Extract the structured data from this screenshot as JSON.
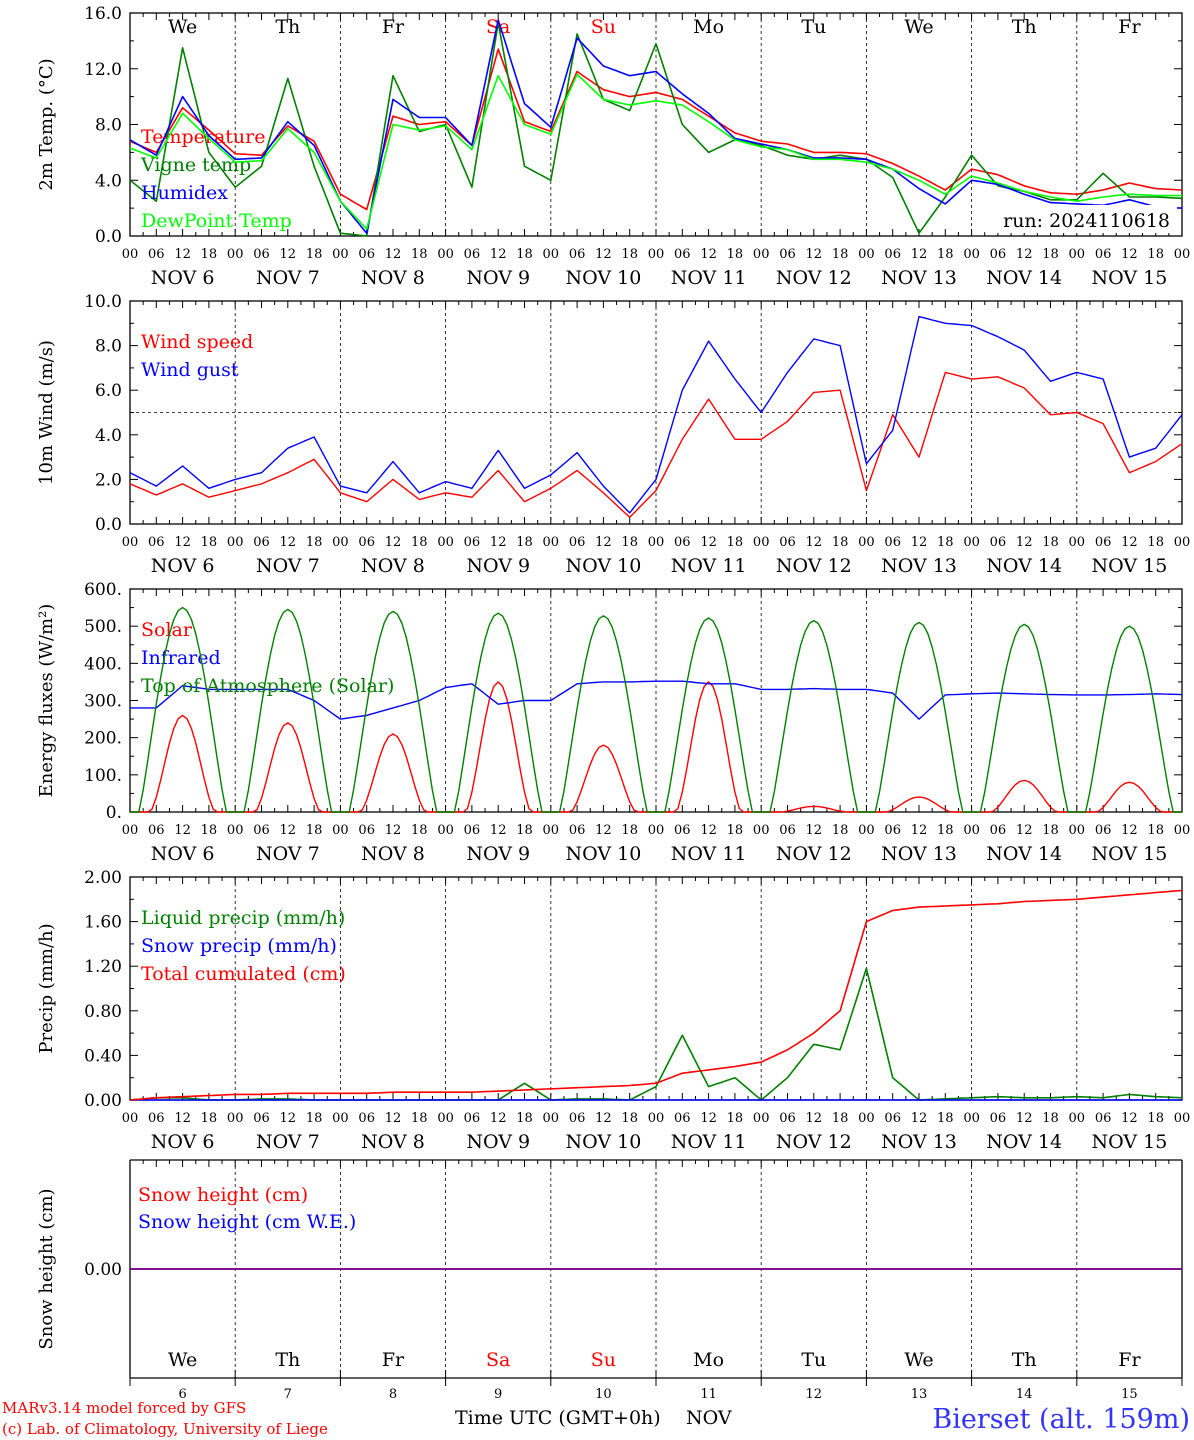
{
  "days": {
    "weekday_labels": [
      "We",
      "Th",
      "Fr",
      "Sa",
      "Su",
      "Mo",
      "Tu",
      "We",
      "Th",
      "Fr"
    ],
    "weekday_colors": [
      "#000000",
      "#000000",
      "#000000",
      "#ff0000",
      "#ff0000",
      "#000000",
      "#000000",
      "#000000",
      "#000000",
      "#000000"
    ],
    "date_labels": [
      "NOV  6",
      "NOV  7",
      "NOV  8",
      "NOV  9",
      "NOV 10",
      "NOV 11",
      "NOV 12",
      "NOV 13",
      "NOV 14",
      "NOV 15"
    ],
    "day_numbers": [
      "6",
      "7",
      "8",
      "9",
      "10",
      "11",
      "12",
      "13",
      "14",
      "15"
    ],
    "hour_ticks": [
      "00",
      "06",
      "12",
      "18"
    ],
    "final_hour": "00"
  },
  "footer": {
    "credit_line1": "MARv3.14 model forced by GFS",
    "credit_line2": "(c) Lab. of Climatology, University of Liege",
    "time_axis_label": "Time UTC (GMT+0h)",
    "month_label": "NOV",
    "station": "Bierset (alt. 159m)"
  },
  "colors": {
    "red": "#ff0000",
    "blue": "#0000ff",
    "green": "#008000",
    "lightgreen": "#00ff00",
    "purple": "#800080",
    "station": "#3333ff"
  },
  "chart_data": [
    {
      "type": "line",
      "ylabel": "2m Temp. (°C)",
      "ylim": [
        0,
        16
      ],
      "yticks": [
        "0.0",
        "4.0",
        "8.0",
        "12.0",
        "16.0"
      ],
      "annotation": "run: 2024110618",
      "x_unit": "hours since NOV 6 00 UTC",
      "show_weekdays": true,
      "series": [
        {
          "name": "Temperature",
          "color": "red",
          "x": [
            0,
            6,
            12,
            18,
            24,
            30,
            36,
            42,
            48,
            54,
            60,
            66,
            72,
            78,
            84,
            90,
            96,
            102,
            108,
            114,
            120,
            126,
            132,
            138,
            144,
            150,
            156,
            162,
            168,
            174,
            180,
            186,
            192,
            198,
            204,
            210,
            216,
            222,
            228,
            234,
            240
          ],
          "y": [
            6.8,
            6.0,
            9.2,
            7.6,
            5.9,
            5.8,
            7.9,
            6.8,
            3.0,
            1.9,
            8.6,
            8.0,
            8.2,
            6.5,
            13.4,
            8.2,
            7.5,
            11.8,
            10.5,
            10.0,
            10.3,
            9.8,
            8.6,
            7.4,
            6.8,
            6.6,
            6.0,
            6.0,
            5.9,
            5.2,
            4.3,
            3.3,
            4.8,
            4.4,
            3.6,
            3.1,
            3.0,
            3.3,
            3.8,
            3.4,
            3.3
          ]
        },
        {
          "name": "Vigne temp",
          "color": "green",
          "x": [
            0,
            6,
            12,
            18,
            24,
            30,
            36,
            42,
            48,
            54,
            60,
            66,
            72,
            78,
            84,
            90,
            96,
            102,
            108,
            114,
            120,
            126,
            132,
            138,
            144,
            150,
            156,
            162,
            168,
            174,
            180,
            186,
            192,
            198,
            204,
            210,
            216,
            222,
            228,
            234,
            240
          ],
          "y": [
            4.0,
            2.5,
            13.5,
            6.0,
            3.5,
            5.0,
            11.3,
            5.0,
            0.2,
            0.0,
            11.5,
            7.5,
            8.0,
            3.5,
            15.3,
            5.0,
            4.0,
            14.5,
            9.8,
            9.0,
            13.8,
            8.0,
            6.0,
            6.9,
            6.5,
            5.8,
            5.5,
            5.8,
            5.5,
            4.2,
            0.2,
            2.8,
            5.8,
            3.6,
            3.2,
            2.6,
            2.6,
            4.5,
            2.8,
            2.8,
            2.7
          ]
        },
        {
          "name": "Humidex",
          "color": "blue",
          "x": [
            0,
            6,
            12,
            18,
            24,
            30,
            36,
            42,
            48,
            54,
            60,
            66,
            72,
            78,
            84,
            90,
            96,
            102,
            108,
            114,
            120,
            126,
            132,
            138,
            144,
            150,
            156,
            162,
            168,
            174,
            180,
            186,
            192,
            198,
            204,
            210,
            216,
            222,
            228,
            234,
            240
          ],
          "y": [
            6.9,
            5.8,
            10.0,
            7.2,
            5.5,
            5.6,
            8.2,
            6.5,
            2.5,
            0.2,
            9.8,
            8.5,
            8.5,
            6.5,
            15.5,
            9.5,
            7.8,
            14.2,
            12.2,
            11.5,
            11.8,
            10.2,
            8.8,
            7.0,
            6.6,
            6.2,
            5.6,
            5.6,
            5.5,
            4.8,
            3.4,
            2.3,
            4.0,
            3.7,
            3.0,
            2.4,
            2.3,
            2.2,
            2.6,
            2.1,
            2.0
          ]
        },
        {
          "name": "DewPoint Temp",
          "color": "lightgreen",
          "x": [
            0,
            6,
            12,
            18,
            24,
            30,
            36,
            42,
            48,
            54,
            60,
            66,
            72,
            78,
            84,
            90,
            96,
            102,
            108,
            114,
            120,
            126,
            132,
            138,
            144,
            150,
            156,
            162,
            168,
            174,
            180,
            186,
            192,
            198,
            204,
            210,
            216,
            222,
            228,
            234,
            240
          ],
          "y": [
            6.3,
            5.6,
            8.8,
            7.0,
            5.3,
            5.4,
            7.7,
            6.0,
            2.5,
            0.5,
            8.0,
            7.6,
            7.9,
            6.2,
            11.5,
            8.0,
            7.3,
            11.6,
            9.8,
            9.4,
            9.7,
            9.4,
            8.2,
            6.9,
            6.4,
            6.2,
            5.5,
            5.5,
            5.3,
            4.8,
            4.0,
            3.0,
            4.3,
            3.8,
            3.2,
            2.8,
            2.5,
            2.8,
            3.0,
            2.9,
            2.9
          ]
        }
      ]
    },
    {
      "type": "line",
      "ylabel": "10m Wind (m/s)",
      "ylim": [
        0,
        10
      ],
      "yticks": [
        "0.0",
        "2.0",
        "4.0",
        "6.0",
        "8.0",
        "10.0"
      ],
      "refline": 5,
      "x_unit": "hours since NOV 6 00 UTC",
      "series": [
        {
          "name": "Wind speed",
          "color": "red",
          "x": [
            0,
            6,
            12,
            18,
            24,
            30,
            36,
            42,
            48,
            54,
            60,
            66,
            72,
            78,
            84,
            90,
            96,
            102,
            108,
            114,
            120,
            126,
            132,
            138,
            144,
            150,
            156,
            162,
            168,
            174,
            180,
            186,
            192,
            198,
            204,
            210,
            216,
            222,
            228,
            234,
            240
          ],
          "y": [
            1.8,
            1.3,
            1.8,
            1.2,
            1.5,
            1.8,
            2.3,
            2.9,
            1.4,
            1.0,
            2.0,
            1.1,
            1.4,
            1.2,
            2.4,
            1.0,
            1.6,
            2.4,
            1.4,
            0.3,
            1.5,
            3.8,
            5.6,
            3.8,
            3.8,
            4.6,
            5.9,
            6.0,
            1.5,
            4.9,
            3.0,
            6.8,
            6.5,
            6.6,
            6.1,
            4.9,
            5.0,
            4.5,
            2.3,
            2.8,
            3.6
          ]
        },
        {
          "name": "Wind gust",
          "color": "blue",
          "x": [
            0,
            6,
            12,
            18,
            24,
            30,
            36,
            42,
            48,
            54,
            60,
            66,
            72,
            78,
            84,
            90,
            96,
            102,
            108,
            114,
            120,
            126,
            132,
            138,
            144,
            150,
            156,
            162,
            168,
            174,
            180,
            186,
            192,
            198,
            204,
            210,
            216,
            222,
            228,
            234,
            240
          ],
          "y": [
            2.3,
            1.7,
            2.6,
            1.6,
            2.0,
            2.3,
            3.4,
            3.9,
            1.7,
            1.4,
            2.8,
            1.4,
            1.9,
            1.6,
            3.3,
            1.6,
            2.2,
            3.2,
            1.7,
            0.5,
            2.0,
            6.0,
            8.2,
            6.5,
            5.0,
            6.8,
            8.3,
            8.0,
            2.7,
            4.2,
            9.3,
            9.0,
            8.9,
            8.4,
            7.8,
            6.4,
            6.8,
            6.5,
            3.0,
            3.4,
            4.9
          ]
        }
      ]
    },
    {
      "type": "line",
      "ylabel": "Energy fluxes (W/m²)",
      "ylim": [
        0,
        600
      ],
      "yticks": [
        "0.",
        "100.",
        "200.",
        "300.",
        "400.",
        "500.",
        "600."
      ],
      "x_unit": "hours since NOV 6 00 UTC",
      "series": [
        {
          "name": "Solar",
          "color": "red",
          "day_peaks": [
            260,
            240,
            210,
            350,
            180,
            350,
            15,
            40,
            85,
            80
          ]
        },
        {
          "name": "Infrared",
          "color": "blue",
          "x": [
            0,
            6,
            12,
            18,
            24,
            30,
            36,
            42,
            48,
            54,
            60,
            66,
            72,
            78,
            84,
            90,
            96,
            102,
            108,
            114,
            120,
            126,
            132,
            138,
            144,
            150,
            156,
            162,
            168,
            174,
            180,
            186,
            192,
            198,
            204,
            210,
            216,
            222,
            228,
            234,
            240
          ],
          "y": [
            280,
            280,
            340,
            330,
            330,
            330,
            330,
            300,
            250,
            260,
            280,
            300,
            335,
            345,
            290,
            300,
            300,
            345,
            350,
            350,
            352,
            352,
            345,
            345,
            330,
            330,
            332,
            330,
            330,
            320,
            250,
            315,
            318,
            320,
            318,
            316,
            315,
            315,
            316,
            318,
            316
          ]
        },
        {
          "name": "Top of Atmosphere (Solar)",
          "color": "green",
          "day_peaks": [
            550,
            545,
            540,
            535,
            528,
            522,
            515,
            510,
            505,
            500
          ]
        }
      ]
    },
    {
      "type": "line",
      "ylabel": "Precip (mm/h)",
      "ylim": [
        0,
        2
      ],
      "yticks": [
        "0.00",
        "0.40",
        "0.80",
        "1.20",
        "1.60",
        "2.00"
      ],
      "x_unit": "hours since NOV 6 00 UTC",
      "series": [
        {
          "name": "Liquid precip (mm/h)",
          "color": "green",
          "x": [
            0,
            6,
            12,
            18,
            24,
            30,
            36,
            42,
            48,
            54,
            60,
            66,
            72,
            78,
            84,
            90,
            96,
            102,
            108,
            114,
            120,
            126,
            132,
            138,
            144,
            150,
            156,
            162,
            168,
            174,
            180,
            186,
            192,
            198,
            204,
            210,
            216,
            222,
            228,
            234,
            240
          ],
          "y": [
            0.0,
            0.02,
            0.02,
            0.0,
            0.0,
            0.01,
            0.01,
            0.0,
            0.0,
            0.0,
            0.0,
            0.0,
            0.0,
            0.0,
            0.0,
            0.15,
            0.0,
            0.01,
            0.01,
            0.0,
            0.12,
            0.58,
            0.12,
            0.2,
            0.0,
            0.2,
            0.5,
            0.45,
            1.18,
            0.2,
            0.0,
            0.01,
            0.02,
            0.03,
            0.02,
            0.02,
            0.03,
            0.02,
            0.05,
            0.03,
            0.02
          ]
        },
        {
          "name": "Snow precip (mm/h)",
          "color": "blue",
          "x": [
            0,
            240
          ],
          "y": [
            0.0,
            0.0
          ]
        },
        {
          "name": "Total cumulated (cm)",
          "color": "red",
          "x": [
            0,
            6,
            12,
            18,
            24,
            30,
            36,
            42,
            48,
            54,
            60,
            66,
            72,
            78,
            84,
            90,
            96,
            102,
            108,
            114,
            120,
            126,
            132,
            138,
            144,
            150,
            156,
            162,
            168,
            174,
            180,
            186,
            192,
            198,
            204,
            210,
            216,
            222,
            228,
            234,
            240
          ],
          "y": [
            0.0,
            0.02,
            0.03,
            0.04,
            0.05,
            0.05,
            0.06,
            0.06,
            0.06,
            0.06,
            0.07,
            0.07,
            0.07,
            0.07,
            0.08,
            0.09,
            0.1,
            0.11,
            0.12,
            0.13,
            0.15,
            0.24,
            0.27,
            0.3,
            0.34,
            0.45,
            0.6,
            0.8,
            1.6,
            1.7,
            1.73,
            1.74,
            1.75,
            1.76,
            1.78,
            1.79,
            1.8,
            1.82,
            1.84,
            1.86,
            1.88
          ]
        }
      ]
    },
    {
      "type": "line",
      "ylabel": "Snow height (cm)",
      "ylim": [
        -1,
        1
      ],
      "yticks": [
        "0.00"
      ],
      "x_unit": "hours since NOV 6 00 UTC",
      "series": [
        {
          "name": "Snow height (cm)",
          "color": "red",
          "x": [
            0,
            240
          ],
          "y": [
            0,
            0
          ]
        },
        {
          "name": "Snow height (cm W.E.)",
          "color": "blue",
          "x": [
            0,
            240
          ],
          "y": [
            0,
            0
          ]
        }
      ]
    }
  ]
}
